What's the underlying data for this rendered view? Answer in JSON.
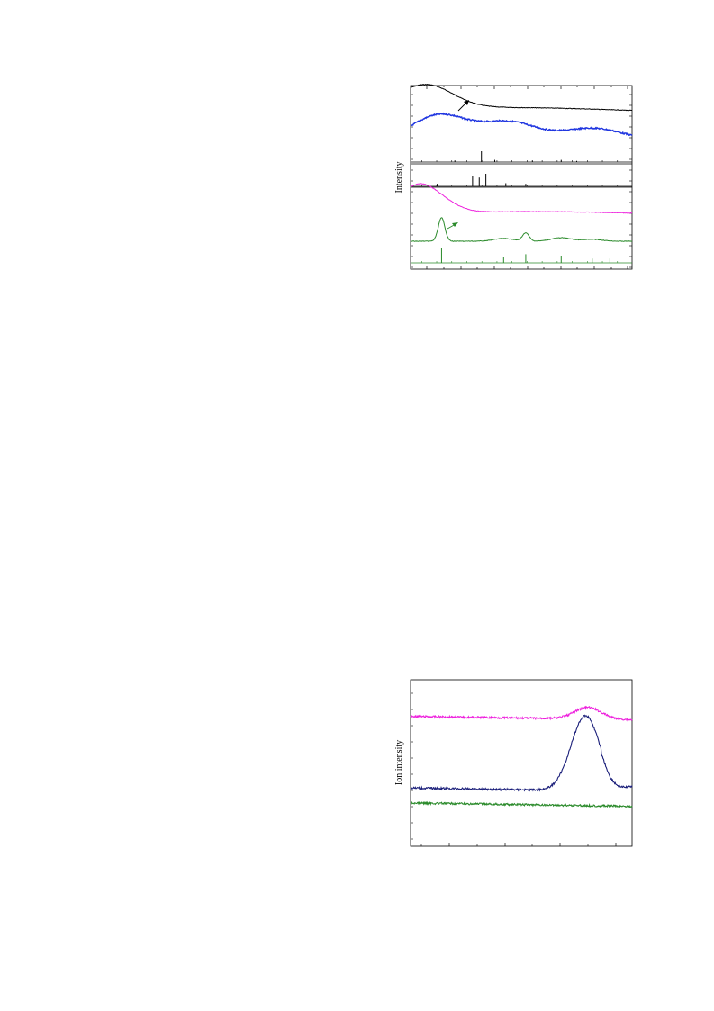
{
  "colors": {
    "black": "#000000",
    "blue": "#1f35e0",
    "magenta": "#ee22dd",
    "green": "#2a8a2a",
    "navy": "#1b1f7a"
  },
  "chart_data": [
    {
      "type": "line",
      "title": "",
      "ylabel": "Intensity",
      "xlabel": "",
      "stacked_offset": true,
      "series": [
        {
          "color": "black",
          "peaks": [
            [
              0.07,
              1.0
            ],
            [
              0.21,
              0.08
            ],
            [
              0.42,
              0.12
            ],
            [
              0.82,
              0.1
            ]
          ]
        },
        {
          "color": "blue",
          "peaks": [
            [
              0.13,
              1.0
            ],
            [
              0.44,
              0.62
            ],
            [
              0.52,
              0.18
            ],
            [
              0.83,
              0.4
            ]
          ]
        },
        {
          "color": "black",
          "reference_sticks": [
            [
              0.32,
              1.0
            ],
            [
              0.2,
              0.15
            ],
            [
              0.38,
              0.2
            ],
            [
              0.55,
              0.15
            ],
            [
              0.68,
              0.2
            ],
            [
              0.75,
              0.1
            ]
          ]
        },
        {
          "color": "black",
          "reference_sticks": [
            [
              0.28,
              0.8
            ],
            [
              0.31,
              0.7
            ],
            [
              0.34,
              1.0
            ],
            [
              0.12,
              0.2
            ],
            [
              0.43,
              0.25
            ],
            [
              0.52,
              0.2
            ]
          ]
        },
        {
          "color": "magenta",
          "peaks": [
            [
              0.03,
              1.0
            ],
            [
              0.14,
              0.35
            ],
            [
              0.42,
              0.08
            ],
            [
              0.8,
              0.06
            ]
          ]
        },
        {
          "color": "green",
          "peaks": [
            [
              0.14,
              1.0
            ],
            [
              0.42,
              0.12
            ],
            [
              0.52,
              0.35
            ],
            [
              0.68,
              0.15
            ],
            [
              0.82,
              0.08
            ]
          ]
        },
        {
          "color": "green",
          "reference_sticks": [
            [
              0.14,
              1.0
            ],
            [
              0.42,
              0.4
            ],
            [
              0.52,
              0.6
            ],
            [
              0.68,
              0.5
            ],
            [
              0.82,
              0.3
            ],
            [
              0.9,
              0.3
            ]
          ]
        }
      ]
    },
    {
      "type": "line",
      "title": "",
      "ylabel": "Ion intensity",
      "xlabel": "",
      "series": [
        {
          "color": "magenta",
          "baseline": 0.78,
          "peak_x": 0.8,
          "peak_h": 0.07
        },
        {
          "color": "navy",
          "baseline": 0.35,
          "peak_x": 0.79,
          "peak_h": 0.45
        },
        {
          "color": "green",
          "baseline": 0.26,
          "peak_x": null,
          "peak_h": 0
        }
      ]
    }
  ]
}
